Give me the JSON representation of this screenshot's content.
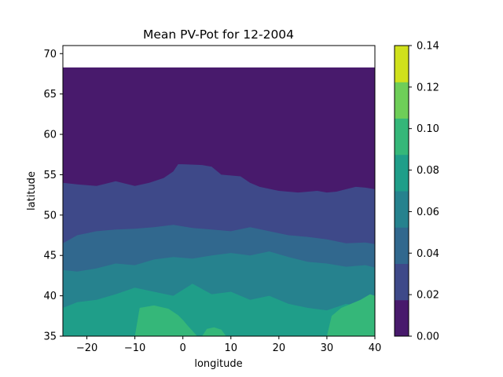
{
  "chart_data": {
    "type": "heatmap",
    "subtype": "filled-contour",
    "title": "Mean PV-Pot for 12-2004",
    "xlabel": "longitude",
    "ylabel": "latitude",
    "xlim": [
      -25,
      40
    ],
    "ylim": [
      35,
      71
    ],
    "x_ticks": [
      -20,
      -10,
      0,
      10,
      20,
      30,
      40
    ],
    "y_ticks": [
      35,
      40,
      45,
      50,
      55,
      60,
      65,
      70
    ],
    "data_extent": {
      "lon": [
        -25,
        40
      ],
      "lat": [
        35,
        68.3
      ]
    },
    "colormap": "viridis",
    "colorbar": {
      "levels": [
        0.0,
        0.02,
        0.04,
        0.06,
        0.08,
        0.1,
        0.12,
        0.14
      ],
      "labels": [
        "0.00",
        "0.02",
        "0.04",
        "0.06",
        "0.08",
        "0.10",
        "0.12",
        "0.14"
      ],
      "colors": [
        "#481a6c",
        "#3e4989",
        "#31688e",
        "#26828e",
        "#1f9e89",
        "#35b779",
        "#6ece58",
        "#d0e11c"
      ]
    },
    "contour_boundaries": [
      {
        "level": 0.02,
        "lon": [
          -25,
          -22,
          -18,
          -14,
          -10,
          -7,
          -4,
          -2,
          -1,
          0,
          4,
          6,
          8,
          12,
          14,
          16,
          20,
          24,
          28,
          30,
          32,
          34,
          36,
          38,
          40
        ],
        "lat": [
          54,
          53.8,
          53.6,
          54.2,
          53.6,
          54.0,
          54.6,
          55.4,
          56.3,
          56.3,
          56.2,
          56.0,
          55.0,
          54.8,
          54.0,
          53.5,
          53.0,
          52.8,
          53.0,
          52.8,
          52.9,
          53.2,
          53.5,
          53.4,
          53.2
        ]
      },
      {
        "level": 0.04,
        "lon": [
          -25,
          -22,
          -18,
          -14,
          -10,
          -6,
          -2,
          2,
          6,
          10,
          14,
          18,
          22,
          26,
          30,
          34,
          38,
          40
        ],
        "lat": [
          46.5,
          47.5,
          48.0,
          48.2,
          48.3,
          48.5,
          48.8,
          48.4,
          48.2,
          48.0,
          48.5,
          48.0,
          47.5,
          47.3,
          47.0,
          46.5,
          46.6,
          46.4
        ]
      },
      {
        "level": 0.06,
        "lon": [
          -25,
          -22,
          -18,
          -14,
          -10,
          -6,
          -2,
          2,
          6,
          10,
          14,
          18,
          22,
          26,
          30,
          34,
          38,
          40
        ],
        "lat": [
          43.2,
          43.0,
          43.4,
          44.0,
          43.8,
          44.5,
          44.8,
          44.6,
          45.0,
          45.3,
          45.0,
          45.5,
          44.8,
          44.2,
          44.0,
          43.6,
          43.8,
          43.5
        ]
      },
      {
        "level": 0.08,
        "lon": [
          -25,
          -22,
          -18,
          -14,
          -10,
          -6,
          -2,
          2,
          6,
          10,
          14,
          18,
          22,
          26,
          30,
          34,
          38,
          40
        ],
        "lat": [
          38.5,
          39.2,
          39.5,
          40.2,
          41.0,
          40.5,
          40.0,
          41.5,
          40.2,
          40.5,
          39.5,
          40.0,
          39.0,
          38.5,
          38.2,
          39.0,
          38.6,
          38.8
        ]
      },
      {
        "level": 0.1,
        "lon": [
          -10,
          -9,
          -6,
          -3,
          -1,
          0,
          1,
          3
        ],
        "lat": [
          35,
          38.5,
          38.8,
          38.4,
          37.6,
          37.0,
          36.3,
          35
        ]
      },
      {
        "level": 0.1,
        "lon": [
          30,
          31,
          33,
          35,
          37,
          39,
          40
        ],
        "lat": [
          35,
          37.5,
          38.5,
          39.0,
          39.5,
          40.2,
          40.0
        ]
      },
      {
        "level": 0.1,
        "lon": [
          4,
          5,
          6.5,
          8,
          9
        ],
        "lat": [
          35,
          35.9,
          36.1,
          35.8,
          35
        ]
      }
    ]
  }
}
